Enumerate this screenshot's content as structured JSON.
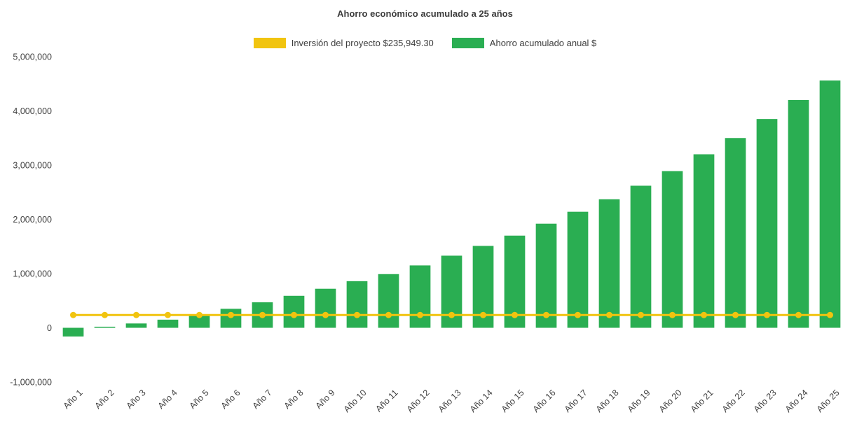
{
  "page": {
    "background": "#ffffff",
    "text_color": "#3f3f3f"
  },
  "header": {
    "title": "Ahorro económico acumulado a 25 años"
  },
  "chart_data": {
    "type": "bar",
    "title": "Ahorro económico acumulado a 25 años",
    "xlabel": "",
    "ylabel": "",
    "ylim": [
      -1000000,
      5000000
    ],
    "yticks": [
      -1000000,
      0,
      1000000,
      2000000,
      3000000,
      4000000,
      5000000
    ],
    "grid": false,
    "legend_position": "top",
    "categories": [
      "Año 1",
      "Año 2",
      "Año 3",
      "Año 4",
      "Año 5",
      "Año 6",
      "Año 7",
      "Año 8",
      "Año 9",
      "Año 10",
      "Año 11",
      "Año 12",
      "Año 13",
      "Año 14",
      "Año 15",
      "Año 16",
      "Año 17",
      "Año 18",
      "Año 19",
      "Año 20",
      "Año 21",
      "Año 22",
      "Año 23",
      "Año 24",
      "Año 25"
    ],
    "series": [
      {
        "name": "Inversión del proyecto $235,949.30",
        "type": "line",
        "color": "#f1c40f",
        "constant_value": 235949.3
      },
      {
        "name": "Ahorro acumulado anual $",
        "type": "bar",
        "color": "#2aae52",
        "values": [
          -160000,
          20000,
          80000,
          150000,
          240000,
          350000,
          470000,
          590000,
          720000,
          860000,
          990000,
          1150000,
          1330000,
          1510000,
          1700000,
          1920000,
          2140000,
          2370000,
          2620000,
          2890000,
          3200000,
          3500000,
          3850000,
          4200000,
          4560000
        ]
      }
    ]
  }
}
